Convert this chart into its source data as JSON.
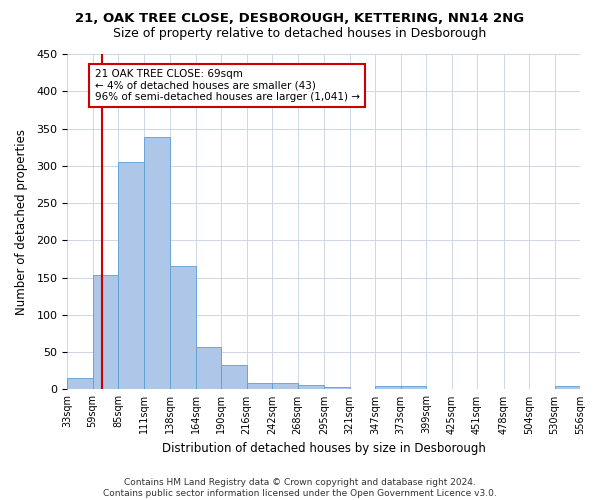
{
  "title1": "21, OAK TREE CLOSE, DESBOROUGH, KETTERING, NN14 2NG",
  "title2": "Size of property relative to detached houses in Desborough",
  "xlabel": "Distribution of detached houses by size in Desborough",
  "ylabel": "Number of detached properties",
  "footnote": "Contains HM Land Registry data © Crown copyright and database right 2024.\nContains public sector information licensed under the Open Government Licence v3.0.",
  "bar_color": "#aec6e8",
  "bar_edge_color": "#5a9fd4",
  "bin_edges": [
    33,
    59,
    85,
    111,
    138,
    164,
    190,
    216,
    242,
    268,
    295,
    321,
    347,
    373,
    399,
    425,
    451,
    478,
    504,
    530,
    556
  ],
  "bar_heights": [
    15,
    153,
    305,
    338,
    165,
    57,
    33,
    9,
    8,
    6,
    3,
    1,
    5,
    5,
    1,
    0,
    0,
    0,
    0,
    4
  ],
  "xtick_labels": [
    "33sqm",
    "59sqm",
    "85sqm",
    "111sqm",
    "138sqm",
    "164sqm",
    "190sqm",
    "216sqm",
    "242sqm",
    "268sqm",
    "295sqm",
    "321sqm",
    "347sqm",
    "373sqm",
    "399sqm",
    "425sqm",
    "451sqm",
    "478sqm",
    "504sqm",
    "530sqm",
    "556sqm"
  ],
  "ylim": [
    0,
    450
  ],
  "yticks": [
    0,
    50,
    100,
    150,
    200,
    250,
    300,
    350,
    400,
    450
  ],
  "vline_x": 69,
  "vline_color": "#cc0000",
  "annotation_text": "21 OAK TREE CLOSE: 69sqm\n← 4% of detached houses are smaller (43)\n96% of semi-detached houses are larger (1,041) →",
  "annotation_fontsize": 7.5,
  "background_color": "#ffffff",
  "grid_color": "#ccd6e8",
  "title1_fontsize": 9.5,
  "title2_fontsize": 9,
  "xlabel_fontsize": 8.5,
  "ylabel_fontsize": 8.5,
  "footnote_fontsize": 6.5
}
